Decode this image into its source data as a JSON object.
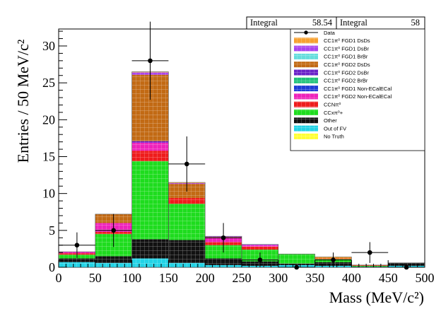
{
  "chart_data": {
    "type": "bar",
    "stacked": true,
    "xlabel": "Mass (MeV/c²)",
    "ylabel": "Entries / 50 MeV/c²",
    "xlim": [
      0,
      500
    ],
    "ylim": [
      0,
      32.3
    ],
    "x_ticks": [
      "0",
      "50",
      "100",
      "150",
      "200",
      "250",
      "300",
      "350",
      "400",
      "450",
      "500"
    ],
    "y_ticks": [
      "0",
      "5",
      "10",
      "15",
      "20",
      "25",
      "30"
    ],
    "bin_edges": [
      0,
      50,
      100,
      150,
      200,
      250,
      300,
      350,
      400,
      450,
      500
    ],
    "series": [
      {
        "name": "No Truth",
        "color": "#ffff33",
        "values": [
          0,
          0,
          0,
          0,
          0,
          0,
          0,
          0,
          0,
          0
        ]
      },
      {
        "name": "Out of FV",
        "color": "#22d3e6",
        "values": [
          0.7,
          0.6,
          1.2,
          0.6,
          0.3,
          0.2,
          0.3,
          0.2,
          0.05,
          0.2
        ]
      },
      {
        "name": "Other",
        "color": "#111111",
        "values": [
          0.5,
          0.9,
          2.6,
          3.1,
          0.9,
          0.6,
          0.2,
          0.5,
          0.05,
          0.4
        ]
      },
      {
        "name": "CCxπ⁰+",
        "color": "#1edc1e",
        "values": [
          0.5,
          3.0,
          10.6,
          4.9,
          1.8,
          1.6,
          1.3,
          0.4,
          0.1,
          0
        ]
      },
      {
        "name": "CCNπ⁰",
        "color": "#ee1c1c",
        "values": [
          0.2,
          0.3,
          1.4,
          0.8,
          0.4,
          0.4,
          0,
          0.1,
          0.1,
          0
        ]
      },
      {
        "name": "CC1π⁰ FGD2 Non-ECalECal",
        "color": "#ee22bb",
        "values": [
          0.2,
          1.2,
          1.1,
          0,
          0.6,
          0.2,
          0,
          0,
          0,
          0
        ]
      },
      {
        "name": "CC1π⁰ FGD1 Non-ECalECal",
        "color": "#1f3cd6",
        "values": [
          0,
          0,
          0,
          0,
          0,
          0,
          0,
          0,
          0,
          0
        ]
      },
      {
        "name": "CC1π⁰ FGD2 BrBr",
        "color": "#1fc27a",
        "values": [
          0,
          0,
          0,
          0,
          0,
          0,
          0,
          0,
          0,
          0
        ]
      },
      {
        "name": "CC1π⁰ FGD2 DsBr",
        "color": "#6a22c8",
        "values": [
          0,
          0,
          0.2,
          0,
          0,
          0,
          0,
          0,
          0,
          0
        ]
      },
      {
        "name": "CC1π⁰ FGD2 DsDs",
        "color": "#c26a14",
        "values": [
          0,
          1.2,
          9.0,
          1.9,
          0.1,
          0,
          0,
          0,
          0,
          0
        ]
      },
      {
        "name": "CC1π⁰ FGD1 BrBr",
        "color": "#66dddd",
        "values": [
          0,
          0,
          0,
          0,
          0,
          0,
          0,
          0,
          0,
          0
        ]
      },
      {
        "name": "CC1π⁰ FGD1 DsBr",
        "color": "#aa44ee",
        "values": [
          0,
          0,
          0.3,
          0.1,
          0.1,
          0.1,
          0,
          0,
          0,
          0
        ]
      },
      {
        "name": "CC1π⁰ FGD1 DsDs",
        "color": "#f7a030",
        "values": [
          0,
          0,
          0.1,
          0.1,
          0,
          0,
          0,
          0.2,
          0,
          0
        ]
      }
    ],
    "data_points": {
      "name": "Data",
      "x": [
        25,
        75,
        125,
        175,
        225,
        275,
        325,
        375,
        425,
        475
      ],
      "y": [
        3,
        5,
        28,
        14,
        4,
        1,
        0,
        1,
        2,
        0
      ],
      "yerr": [
        1.73,
        2.24,
        5.29,
        3.74,
        2.0,
        1.0,
        0,
        1.0,
        1.41,
        0
      ]
    },
    "legend": {
      "placement": "top-right",
      "entries": [
        "Data",
        "CC1π⁰ FGD1 DsDs",
        "CC1π⁰ FGD1 DsBr",
        "CC1π⁰ FGD1 BrBr",
        "CC1π⁰ FGD2 DsDs",
        "CC1π⁰ FGD2 DsBr",
        "CC1π⁰ FGD2 BrBr",
        "CC1π⁰ FGD1 Non-ECalECal",
        "CC1π⁰ FGD2 Non-ECalECal",
        "CCNπ⁰",
        "CCxπ⁰+",
        "Other",
        "Out of FV",
        "No Truth"
      ]
    },
    "stat_boxes": [
      {
        "label": "Integral",
        "value": "58.54"
      },
      {
        "label": "Integral",
        "value": "58"
      }
    ]
  }
}
